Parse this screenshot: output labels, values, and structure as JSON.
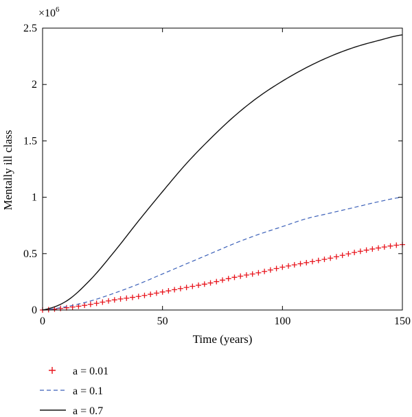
{
  "chart_data": {
    "type": "line",
    "xlabel": "Time (years)",
    "ylabel": "Mentally ill class",
    "y_multiplier_label": "×10",
    "y_multiplier_exponent": "6",
    "xlim": [
      0,
      150
    ],
    "ylim": [
      0,
      2.5
    ],
    "x_ticks": [
      "0",
      "50",
      "100",
      "150"
    ],
    "y_ticks": [
      "0",
      "0.5",
      "1",
      "1.5",
      "2",
      "2.5"
    ],
    "grid": false,
    "legend_position": "below plot, left",
    "series": [
      {
        "name": "a = 0.01",
        "style": "plus-markers",
        "color": "#e8141c",
        "x": [
          0,
          10,
          20,
          30,
          40,
          50,
          60,
          70,
          80,
          90,
          100,
          110,
          120,
          130,
          140,
          150
        ],
        "y": [
          0,
          0.02,
          0.05,
          0.09,
          0.12,
          0.16,
          0.2,
          0.24,
          0.29,
          0.33,
          0.38,
          0.42,
          0.46,
          0.51,
          0.55,
          0.58
        ]
      },
      {
        "name": "a = 0.1",
        "style": "dashed",
        "color": "#3a5fb8",
        "x": [
          0,
          10,
          20,
          30,
          40,
          50,
          60,
          70,
          80,
          90,
          100,
          110,
          120,
          130,
          140,
          150
        ],
        "y": [
          0,
          0.03,
          0.08,
          0.15,
          0.23,
          0.32,
          0.41,
          0.5,
          0.59,
          0.67,
          0.74,
          0.81,
          0.86,
          0.91,
          0.96,
          1.0
        ]
      },
      {
        "name": "a = 0.7",
        "style": "solid",
        "color": "#111111",
        "x": [
          0,
          10,
          20,
          30,
          40,
          50,
          60,
          70,
          80,
          90,
          100,
          110,
          120,
          130,
          140,
          150
        ],
        "y": [
          0,
          0.08,
          0.27,
          0.52,
          0.79,
          1.05,
          1.3,
          1.52,
          1.72,
          1.89,
          2.03,
          2.15,
          2.25,
          2.33,
          2.39,
          2.44
        ]
      }
    ]
  }
}
